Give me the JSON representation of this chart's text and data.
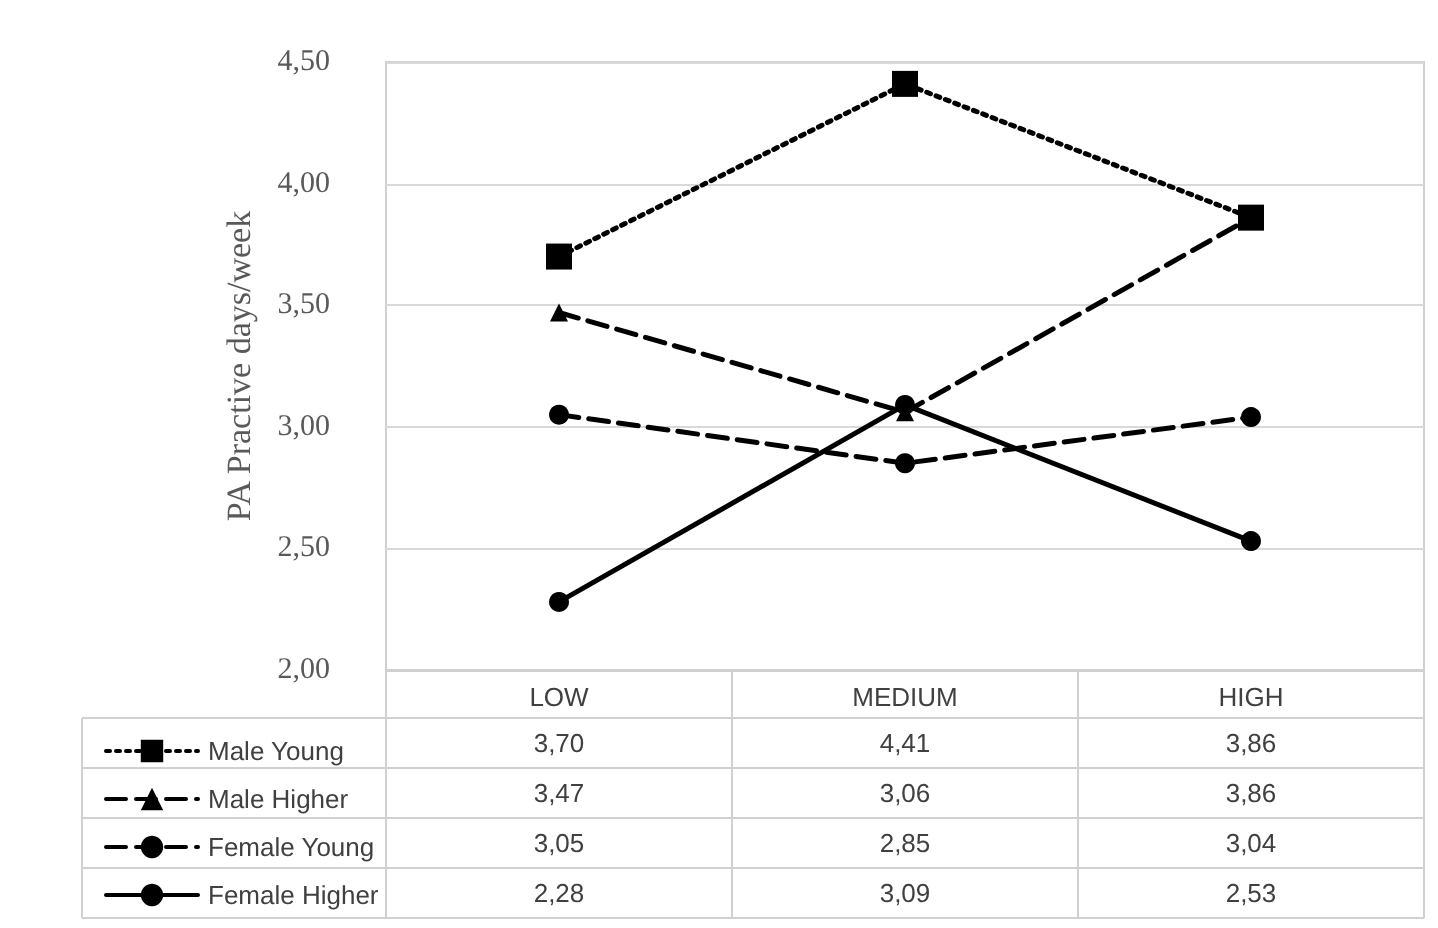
{
  "chart_data": {
    "type": "line",
    "ylabel": "PA Practive days/week",
    "categories": [
      "LOW",
      "MEDIUM",
      "HIGH"
    ],
    "series": [
      {
        "name": "Male Young",
        "color": "#000000",
        "values": [
          3.7,
          4.41,
          3.86
        ],
        "marker": "square",
        "line_style": "dotted"
      },
      {
        "name": "Male Higher",
        "color": "#000000",
        "values": [
          3.47,
          3.06,
          3.86
        ],
        "marker": "triangle",
        "line_style": "dashed"
      },
      {
        "name": "Female Young",
        "color": "#000000",
        "values": [
          3.05,
          2.85,
          3.04
        ],
        "marker": "circle",
        "line_style": "dashed"
      },
      {
        "name": "Female Higher",
        "color": "#000000",
        "values": [
          2.28,
          3.09,
          2.53
        ],
        "marker": "circle",
        "line_style": "solid"
      }
    ],
    "ylim": [
      2,
      4.5
    ],
    "yticks": [
      {
        "value": 2,
        "label": "2,00"
      },
      {
        "value": 2.5,
        "label": "2,50"
      },
      {
        "value": 3,
        "label": "3,00"
      },
      {
        "value": 3.5,
        "label": "3,50"
      },
      {
        "value": 4,
        "label": "4,00"
      },
      {
        "value": 4.5,
        "label": "4,50"
      }
    ],
    "value_labels": [
      [
        "3,70",
        "4,41",
        "3,86"
      ],
      [
        "3,47",
        "3,06",
        "3,86"
      ],
      [
        "3,05",
        "2,85",
        "3,04"
      ],
      [
        "2,28",
        "3,09",
        "2,53"
      ]
    ],
    "grid": "y",
    "legend": "bottom left"
  }
}
